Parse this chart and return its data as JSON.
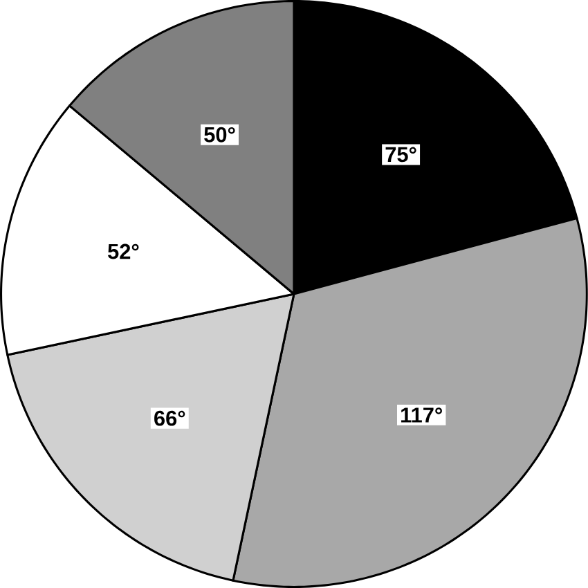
{
  "chart_data": {
    "type": "pie",
    "categories": [
      null,
      null,
      null,
      null,
      null
    ],
    "values": [
      75,
      117,
      66,
      52,
      50
    ],
    "colors": [
      "#000000",
      "#a8a8a8",
      "#d0d0d0",
      "#ffffff",
      "#808080"
    ],
    "value_labels": [
      "75°",
      "117°",
      "66°",
      "52°",
      "50°"
    ]
  }
}
